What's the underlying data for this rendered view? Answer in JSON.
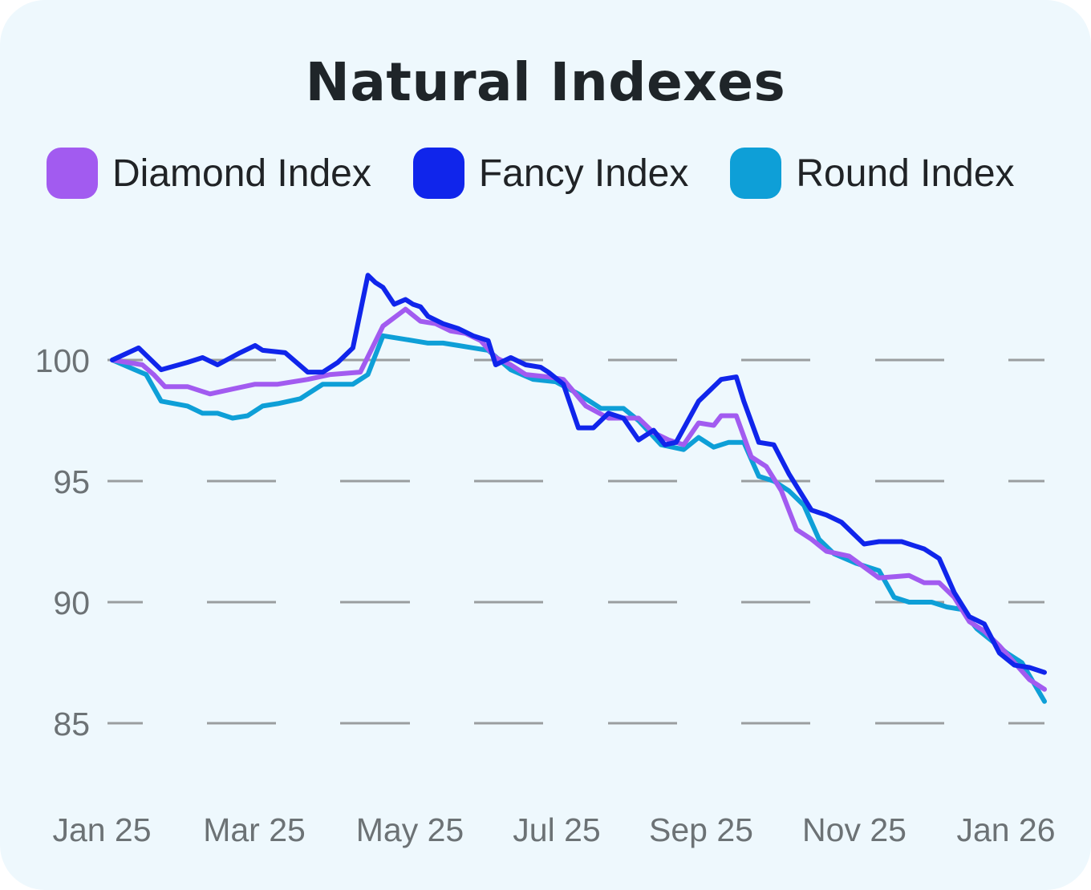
{
  "chart_data": {
    "type": "line",
    "title": "Natural Indexes",
    "xlabel": "",
    "ylabel": "",
    "x_ticks": [
      "Jan 25",
      "Mar 25",
      "May 25",
      "Jul 25",
      "Sep 25",
      "Nov 25",
      "Jan 26"
    ],
    "y_ticks": [
      "85",
      "90",
      "95",
      "100"
    ],
    "xlim": [
      0,
      12.4
    ],
    "ylim": [
      82,
      105
    ],
    "grid": "horizontal dashed",
    "legend": "top",
    "series": [
      {
        "name": "Diamond Index",
        "color": "#a25bf0",
        "x": [
          0,
          0.2,
          0.4,
          0.55,
          0.7,
          1.0,
          1.3,
          1.6,
          1.9,
          2.2,
          2.6,
          2.9,
          3.3,
          3.6,
          3.9,
          4.1,
          4.3,
          4.5,
          4.7,
          4.9,
          5.1,
          5.3,
          5.5,
          5.8,
          6.0,
          6.3,
          6.6,
          7.0,
          7.2,
          7.4,
          7.6,
          7.8,
          8.0,
          8.1,
          8.3,
          8.5,
          8.7,
          8.9,
          9.1,
          9.3,
          9.5,
          9.8,
          10.2,
          10.6,
          10.8,
          11.0,
          11.2,
          11.4,
          11.6,
          11.8,
          12.0,
          12.2,
          12.4
        ],
        "y": [
          100,
          99.9,
          99.8,
          99.4,
          98.9,
          98.9,
          98.6,
          98.8,
          99.0,
          99.0,
          99.2,
          99.4,
          99.5,
          101.4,
          102.1,
          101.6,
          101.5,
          101.2,
          101.1,
          100.8,
          100.1,
          99.8,
          99.4,
          99.3,
          99.2,
          98.1,
          97.6,
          97.6,
          97.0,
          96.7,
          96.5,
          97.4,
          97.3,
          97.7,
          97.7,
          96.0,
          95.6,
          94.6,
          93.0,
          92.6,
          92.1,
          91.9,
          91.0,
          91.1,
          90.8,
          90.8,
          90.2,
          89.2,
          88.8,
          88.2,
          87.5,
          86.8,
          86.4
        ]
      },
      {
        "name": "Fancy Index",
        "color": "#1025eb",
        "x": [
          0,
          0.35,
          0.45,
          0.65,
          1.0,
          1.2,
          1.4,
          1.7,
          1.9,
          2.0,
          2.3,
          2.6,
          2.8,
          3.0,
          3.2,
          3.4,
          3.5,
          3.6,
          3.75,
          3.9,
          4.0,
          4.1,
          4.2,
          4.4,
          4.6,
          4.8,
          5.0,
          5.1,
          5.3,
          5.5,
          5.7,
          5.8,
          6.0,
          6.2,
          6.4,
          6.6,
          6.8,
          7.0,
          7.2,
          7.35,
          7.5,
          7.8,
          7.9,
          8.1,
          8.3,
          8.4,
          8.6,
          8.8,
          9.0,
          9.3,
          9.5,
          9.7,
          10.0,
          10.2,
          10.5,
          10.8,
          11.0,
          11.2,
          11.4,
          11.6,
          11.8,
          12.0,
          12.2,
          12.4
        ],
        "y": [
          100,
          100.5,
          100.2,
          99.6,
          99.9,
          100.1,
          99.8,
          100.3,
          100.6,
          100.4,
          100.3,
          99.5,
          99.5,
          99.9,
          100.5,
          103.5,
          103.2,
          103.0,
          102.3,
          102.5,
          102.3,
          102.2,
          101.8,
          101.5,
          101.3,
          101.0,
          100.8,
          99.8,
          100.1,
          99.8,
          99.7,
          99.5,
          99.0,
          97.2,
          97.2,
          97.8,
          97.6,
          96.7,
          97.1,
          96.5,
          96.6,
          98.3,
          98.6,
          99.2,
          99.3,
          98.3,
          96.6,
          96.5,
          95.3,
          93.8,
          93.6,
          93.3,
          92.4,
          92.5,
          92.5,
          92.2,
          91.8,
          90.4,
          89.4,
          89.1,
          87.9,
          87.4,
          87.3,
          87.1
        ]
      },
      {
        "name": "Round Index",
        "color": "#0e9fd7",
        "x": [
          0,
          0.3,
          0.45,
          0.65,
          1.0,
          1.2,
          1.4,
          1.6,
          1.8,
          2.0,
          2.2,
          2.5,
          2.8,
          3.0,
          3.2,
          3.4,
          3.6,
          3.8,
          4.0,
          4.2,
          4.4,
          4.6,
          4.8,
          5.0,
          5.3,
          5.6,
          5.9,
          6.2,
          6.5,
          6.8,
          7.0,
          7.3,
          7.6,
          7.8,
          7.9,
          8.0,
          8.2,
          8.4,
          8.6,
          8.8,
          9.0,
          9.2,
          9.4,
          9.6,
          9.9,
          10.2,
          10.4,
          10.6,
          10.9,
          11.1,
          11.3,
          11.5,
          11.7,
          11.9,
          12.1,
          12.4
        ],
        "y": [
          100,
          99.6,
          99.4,
          98.3,
          98.1,
          97.8,
          97.8,
          97.6,
          97.7,
          98.1,
          98.2,
          98.4,
          99.0,
          99.0,
          99.0,
          99.4,
          101.0,
          100.9,
          100.8,
          100.7,
          100.7,
          100.6,
          100.5,
          100.4,
          99.6,
          99.2,
          99.1,
          98.6,
          98.0,
          98.0,
          97.5,
          96.5,
          96.3,
          96.8,
          96.6,
          96.4,
          96.6,
          96.6,
          95.2,
          95.0,
          94.6,
          94.0,
          92.6,
          92.0,
          91.6,
          91.3,
          90.2,
          90.0,
          90.0,
          89.8,
          89.7,
          88.9,
          88.4,
          87.9,
          87.5,
          85.9
        ]
      }
    ]
  }
}
